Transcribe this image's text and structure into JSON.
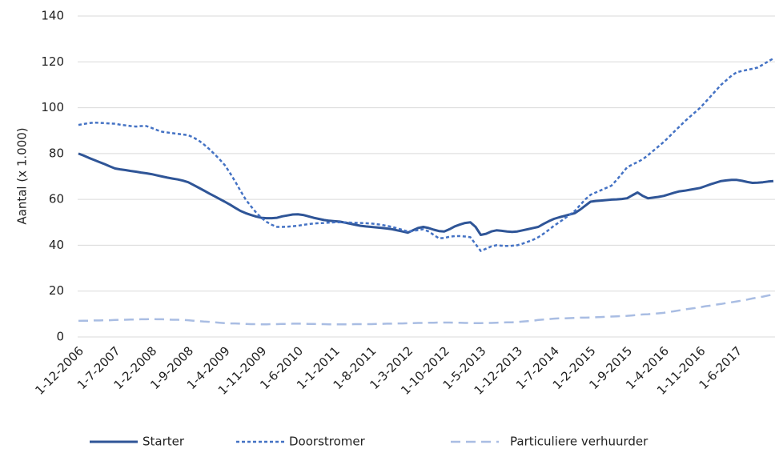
{
  "chart_data": {
    "type": "line",
    "y_label": "Aantal (x 1.000)",
    "categories": [
      "1-12-2006",
      null,
      null,
      null,
      null,
      null,
      null,
      "1-7-2007",
      null,
      null,
      null,
      null,
      null,
      null,
      "1-2-2008",
      null,
      null,
      null,
      null,
      null,
      null,
      "1-9-2008",
      null,
      null,
      null,
      null,
      null,
      null,
      "1-4-2009",
      null,
      null,
      null,
      null,
      null,
      null,
      "1-11-2009",
      null,
      null,
      null,
      null,
      null,
      null,
      "1-6-2010",
      null,
      null,
      null,
      null,
      null,
      null,
      "1-1-2011",
      null,
      null,
      null,
      null,
      null,
      null,
      "1-8-2011",
      null,
      null,
      null,
      null,
      null,
      null,
      "1-3-2012",
      null,
      null,
      null,
      null,
      null,
      null,
      "1-10-2012",
      null,
      null,
      null,
      null,
      null,
      null,
      "1-5-2013",
      null,
      null,
      null,
      null,
      null,
      null,
      "1-12-2013",
      null,
      null,
      null,
      null,
      null,
      null,
      "1-7-2014",
      null,
      null,
      null,
      null,
      null,
      null,
      "1-2-2015",
      null,
      null,
      null,
      null,
      null,
      null,
      "1-9-2015",
      null,
      null,
      null,
      null,
      null,
      null,
      "1-4-2016",
      null,
      null,
      null,
      null,
      null,
      null,
      "1-11-2016",
      null,
      null,
      null,
      null,
      null,
      null,
      "1-6-2017",
      null,
      null,
      null,
      null,
      null,
      null,
      null
    ],
    "series": [
      {
        "name": "Starter",
        "color": "#2f5597",
        "dash": "solid",
        "values": [
          80,
          79.1,
          78.1,
          77.2,
          76.3,
          75.4,
          74.4,
          73.5,
          73.1,
          72.8,
          72.4,
          72.1,
          71.7,
          71.4,
          71.0,
          70.5,
          70.0,
          69.5,
          69.1,
          68.7,
          68.2,
          67.5,
          66.3,
          65.1,
          63.9,
          62.6,
          61.4,
          60.2,
          59.0,
          57.7,
          56.3,
          55.0,
          54.0,
          53.2,
          52.5,
          52.0,
          51.8,
          51.8,
          52.0,
          52.6,
          53.0,
          53.4,
          53.5,
          53.2,
          52.6,
          52.0,
          51.5,
          51.0,
          50.7,
          50.5,
          50.3,
          49.9,
          49.4,
          48.9,
          48.5,
          48.2,
          48.0,
          47.8,
          47.6,
          47.3,
          47.0,
          46.5,
          46.0,
          45.5,
          46.5,
          47.5,
          48.0,
          47.5,
          46.8,
          46.2,
          46.0,
          47.0,
          48.2,
          49.0,
          49.7,
          50.0,
          48.0,
          44.5,
          45.0,
          46.0,
          46.5,
          46.3,
          46.0,
          45.8,
          46.0,
          46.5,
          47.0,
          47.5,
          48.0,
          49.3,
          50.5,
          51.5,
          52.2,
          52.8,
          53.4,
          54.0,
          55.5,
          57.3,
          59.0,
          59.3,
          59.5,
          59.7,
          59.9,
          60.0,
          60.2,
          60.5,
          61.8,
          63.0,
          61.5,
          60.5,
          60.8,
          61.1,
          61.5,
          62.2,
          62.9,
          63.5,
          63.8,
          64.2,
          64.6,
          65.0,
          65.8,
          66.6,
          67.3,
          68.0,
          68.3,
          68.5,
          68.5,
          68.1,
          67.6,
          67.2,
          67.3,
          67.5,
          67.8,
          68.0
        ]
      },
      {
        "name": "Doorstromer",
        "color": "#4472c4",
        "dash": "dotted",
        "values": [
          92.5,
          92.9,
          93.3,
          93.5,
          93.4,
          93.3,
          93.1,
          93.0,
          92.6,
          92.3,
          92.0,
          91.8,
          92.0,
          92.0,
          91.2,
          90.3,
          89.5,
          89.2,
          88.9,
          88.6,
          88.3,
          88.0,
          87.0,
          85.7,
          84.0,
          82.0,
          79.8,
          77.5,
          75.0,
          71.5,
          67.8,
          63.8,
          60.0,
          57.0,
          54.3,
          52.0,
          50.2,
          48.9,
          48.0,
          48.0,
          48.1,
          48.3,
          48.5,
          48.9,
          49.2,
          49.5,
          49.6,
          49.7,
          49.9,
          50.0,
          50.0,
          50.0,
          49.9,
          49.8,
          49.7,
          49.6,
          49.5,
          49.2,
          48.9,
          48.5,
          48.0,
          47.4,
          46.7,
          46.0,
          46.2,
          46.6,
          47.0,
          46.0,
          44.5,
          43.0,
          43.2,
          43.7,
          44.0,
          44.0,
          43.8,
          43.5,
          40.5,
          37.5,
          38.5,
          39.5,
          40.0,
          39.8,
          39.7,
          39.8,
          40.0,
          40.7,
          41.5,
          42.4,
          43.5,
          45.0,
          46.7,
          48.5,
          50.0,
          51.6,
          53.3,
          55.0,
          57.5,
          60.0,
          62.0,
          63.0,
          64.0,
          65.0,
          66.0,
          68.5,
          71.2,
          74.0,
          75.2,
          76.3,
          77.5,
          79.3,
          81.2,
          83.1,
          85.0,
          87.2,
          89.5,
          91.7,
          94.0,
          96.0,
          98.0,
          100.0,
          102.5,
          105.0,
          107.5,
          110.0,
          112.0,
          114.0,
          115.5,
          116.0,
          116.5,
          117.0,
          117.5,
          118.8,
          120.2,
          121.5
        ]
      },
      {
        "name": "Particuliere verhuurder",
        "color": "#a9bde3",
        "dash": "dashed",
        "values": [
          7.0,
          7.1,
          7.1,
          7.2,
          7.2,
          7.3,
          7.3,
          7.4,
          7.5,
          7.5,
          7.6,
          7.6,
          7.7,
          7.7,
          7.8,
          7.7,
          7.7,
          7.6,
          7.5,
          7.5,
          7.4,
          7.3,
          7.1,
          6.9,
          6.7,
          6.6,
          6.4,
          6.2,
          6.0,
          5.9,
          5.9,
          5.8,
          5.7,
          5.6,
          5.6,
          5.5,
          5.5,
          5.6,
          5.6,
          5.7,
          5.7,
          5.8,
          5.8,
          5.8,
          5.7,
          5.7,
          5.6,
          5.6,
          5.5,
          5.5,
          5.5,
          5.5,
          5.5,
          5.6,
          5.6,
          5.6,
          5.6,
          5.7,
          5.7,
          5.8,
          5.8,
          5.9,
          5.9,
          6.0,
          6.0,
          6.1,
          6.1,
          6.2,
          6.2,
          6.3,
          6.3,
          6.3,
          6.2,
          6.2,
          6.1,
          6.1,
          6.0,
          6.0,
          6.1,
          6.1,
          6.2,
          6.3,
          6.4,
          6.4,
          6.5,
          6.7,
          6.9,
          7.1,
          7.4,
          7.6,
          7.8,
          8.0,
          8.1,
          8.1,
          8.2,
          8.3,
          8.4,
          8.4,
          8.5,
          8.6,
          8.7,
          8.8,
          8.9,
          9.0,
          9.1,
          9.2,
          9.4,
          9.6,
          9.8,
          9.9,
          10.1,
          10.3,
          10.5,
          10.9,
          11.2,
          11.6,
          12.0,
          12.3,
          12.6,
          13.0,
          13.4,
          13.7,
          14.1,
          14.4,
          14.8,
          15.1,
          15.5,
          15.9,
          16.3,
          16.8,
          17.2,
          17.6,
          18.1,
          18.5
        ]
      }
    ],
    "ylim": [
      0,
      140
    ],
    "yticks": [
      0,
      20,
      40,
      60,
      80,
      100,
      120,
      140
    ],
    "grid": true,
    "legend": "bottom"
  }
}
